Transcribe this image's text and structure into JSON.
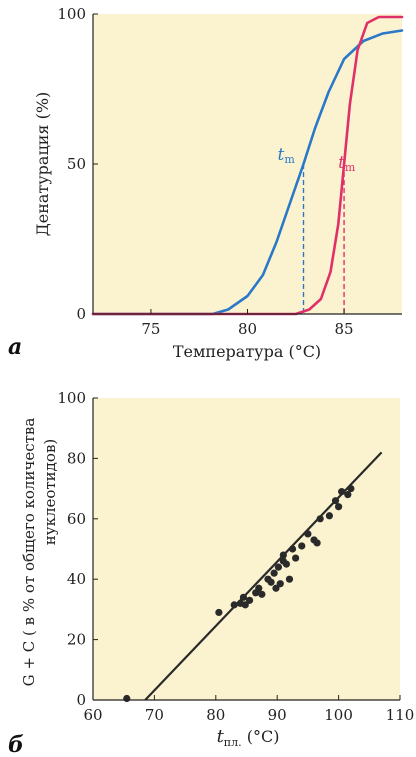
{
  "chart_data": [
    {
      "type": "line",
      "panel_label": "а",
      "xlabel": "Температура (°C)",
      "ylabel": "Денатурация (%)",
      "xlim": [
        72,
        88
      ],
      "ylim": [
        0,
        100
      ],
      "xticks": [
        75,
        80,
        85
      ],
      "yticks": [
        0,
        50,
        100
      ],
      "background_color": "#fbf3cf",
      "grid": false,
      "series": [
        {
          "color": "#2a78c8",
          "x": [
            72,
            78.2,
            79,
            80,
            80.8,
            81.5,
            82.2,
            82.9,
            83.5,
            84.2,
            85,
            86,
            87,
            88
          ],
          "y": [
            0,
            0,
            1.5,
            6,
            13,
            24,
            37,
            50,
            62,
            74,
            85,
            91,
            93.5,
            94.5
          ]
        },
        {
          "color": "#e0306a",
          "x": [
            72,
            82.5,
            83.2,
            83.8,
            84.3,
            84.7,
            85.0,
            85.3,
            85.7,
            86.2,
            86.8,
            87.3,
            88
          ],
          "y": [
            0,
            0,
            1.5,
            5,
            14,
            30,
            50,
            70,
            88,
            97,
            99,
            99,
            99
          ]
        }
      ],
      "annotations": [
        {
          "text": "t",
          "sub": "m",
          "color": "#2a78c8",
          "x": 82.9,
          "y": 50
        },
        {
          "text": "t",
          "sub": "m",
          "color": "#e0306a",
          "x": 85.0,
          "y": 50
        }
      ]
    },
    {
      "type": "scatter",
      "panel_label": "б",
      "xlabel_main": "t",
      "xlabel_sub": "пл.",
      "xlabel_unit": "(°C)",
      "ylabel_line1": "G + C ( в % от общего количества",
      "ylabel_line2": "нуклеотидов)",
      "xlim": [
        60,
        110
      ],
      "ylim": [
        0,
        100
      ],
      "xticks": [
        60,
        70,
        80,
        90,
        100,
        110
      ],
      "yticks": [
        0,
        20,
        40,
        60,
        80,
        100
      ],
      "background_color": "#fbf3cf",
      "grid": false,
      "points": [
        [
          65.5,
          0.5
        ],
        [
          80.5,
          29
        ],
        [
          83,
          31.5
        ],
        [
          84,
          32
        ],
        [
          84.5,
          34
        ],
        [
          84.8,
          31.5
        ],
        [
          85.5,
          33
        ],
        [
          86.5,
          35.5
        ],
        [
          87,
          37
        ],
        [
          87.5,
          35
        ],
        [
          88.5,
          40
        ],
        [
          89,
          39
        ],
        [
          89.5,
          42
        ],
        [
          89.8,
          37
        ],
        [
          90.2,
          44
        ],
        [
          90.5,
          38.5
        ],
        [
          91,
          46
        ],
        [
          91,
          48
        ],
        [
          91.5,
          45
        ],
        [
          92,
          40
        ],
        [
          92.5,
          50
        ],
        [
          93,
          47
        ],
        [
          94,
          51
        ],
        [
          95,
          55
        ],
        [
          96,
          53
        ],
        [
          96.5,
          52
        ],
        [
          97,
          60
        ],
        [
          98.5,
          61
        ],
        [
          99.5,
          66
        ],
        [
          100,
          64
        ],
        [
          100.5,
          69
        ],
        [
          101.5,
          68
        ],
        [
          102,
          70
        ]
      ],
      "trendline": {
        "x": [
          68.5,
          107
        ],
        "y": [
          0,
          82
        ]
      },
      "point_color": "#2a2a2a"
    }
  ]
}
